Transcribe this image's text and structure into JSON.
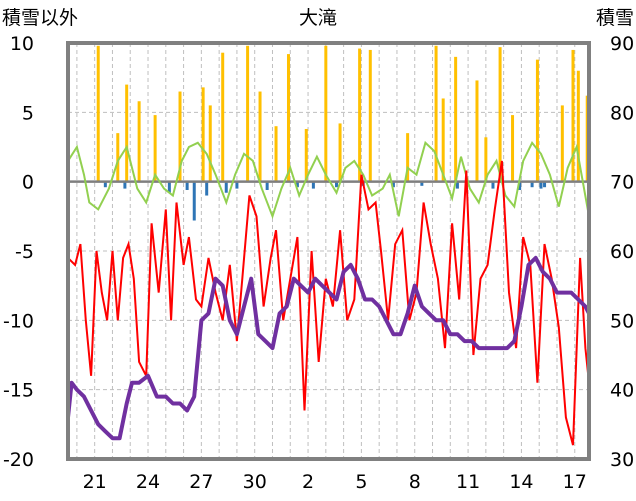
{
  "chart_data": {
    "type": "line",
    "title": "大滝",
    "y_left_label": "積雪以外",
    "y_right_label": "積雪",
    "y_left_range": [
      -20,
      10
    ],
    "y_left_ticks": [
      10,
      5,
      0,
      -5,
      -10,
      -15,
      -20
    ],
    "y_right_range": [
      30,
      90
    ],
    "y_right_ticks": [
      90,
      80,
      70,
      60,
      50,
      40,
      30
    ],
    "x_range": [
      19.5,
      48.8
    ],
    "x_ticks": [
      {
        "v": 21,
        "label": "21"
      },
      {
        "v": 24,
        "label": "24"
      },
      {
        "v": 27,
        "label": "27"
      },
      {
        "v": 30,
        "label": "30"
      },
      {
        "v": 33,
        "label": "2"
      },
      {
        "v": 36,
        "label": "5"
      },
      {
        "v": 39,
        "label": "8"
      },
      {
        "v": 42,
        "label": "11"
      },
      {
        "v": 45,
        "label": "14"
      },
      {
        "v": 48,
        "label": "17"
      }
    ],
    "grid": "dashed",
    "colors": {
      "precip": "#ffc000",
      "sunshine_neg": "#2e75b6",
      "green": "#92d050",
      "red": "#ff0000",
      "snow": "#7030a0",
      "zero_line": "#7f7f7f"
    },
    "series": [
      {
        "key": "precip_bars",
        "axis": "left",
        "x": [
          21.2,
          22.3,
          22.8,
          23.5,
          24.4,
          25.8,
          27.1,
          27.5,
          28.2,
          29.6,
          30.3,
          31.2,
          31.9,
          32.9,
          34.0,
          34.8,
          35.9,
          36.5,
          38.6,
          40.2,
          40.6,
          41.3,
          42.5,
          43.0,
          43.8,
          44.5,
          45.9,
          47.3,
          47.9,
          48.2,
          48.7
        ],
        "values": [
          9.8,
          3.5,
          7.0,
          5.8,
          4.8,
          6.5,
          6.8,
          5.5,
          9.3,
          9.8,
          6.5,
          4.0,
          9.2,
          3.8,
          9.8,
          4.2,
          9.6,
          9.5,
          3.5,
          9.8,
          6.0,
          9.0,
          7.3,
          3.2,
          9.7,
          4.8,
          8.8,
          5.5,
          9.5,
          8.0,
          6.2
        ]
      },
      {
        "key": "sunshine_bars",
        "axis": "left",
        "x": [
          21.6,
          22.7,
          25.2,
          26.2,
          26.6,
          27.3,
          28.4,
          29.0,
          30.7,
          32.4,
          33.3,
          34.6,
          36.1,
          37.8,
          39.4,
          41.4,
          43.4,
          44.9,
          45.6,
          46.1,
          46.3
        ],
        "values": [
          -0.4,
          -0.5,
          -0.8,
          -0.6,
          -2.8,
          -1.0,
          -0.8,
          -0.5,
          -0.6,
          -0.4,
          -0.5,
          -0.4,
          -0.3,
          -0.4,
          -0.3,
          -0.5,
          -0.5,
          -0.6,
          -0.4,
          -0.5,
          -0.4
        ]
      },
      {
        "key": "green_line",
        "axis": "left",
        "x": [
          19.5,
          20.0,
          20.4,
          20.7,
          21.2,
          21.8,
          22.3,
          22.8,
          23.4,
          23.9,
          24.4,
          24.9,
          25.4,
          25.9,
          26.3,
          26.8,
          27.3,
          27.8,
          28.4,
          28.9,
          29.4,
          29.9,
          30.4,
          31.0,
          31.5,
          32.0,
          32.5,
          33.0,
          33.5,
          34.0,
          34.6,
          35.1,
          35.6,
          36.1,
          36.6,
          37.2,
          37.6,
          38.1,
          38.6,
          39.1,
          39.6,
          40.1,
          40.6,
          41.1,
          41.6,
          42.1,
          42.6,
          43.1,
          43.6,
          44.1,
          44.6,
          45.1,
          45.6,
          46.1,
          46.6,
          47.1,
          47.6,
          48.1,
          48.8
        ],
        "values": [
          1.5,
          2.5,
          0.5,
          -1.5,
          -2.0,
          -0.5,
          1.5,
          2.5,
          -0.5,
          -1.5,
          0.5,
          -0.5,
          -1.0,
          1.5,
          2.5,
          2.8,
          2.0,
          0.5,
          -1.5,
          0.5,
          2.0,
          1.5,
          -0.5,
          -2.5,
          -0.5,
          1.0,
          -1.0,
          0.5,
          1.8,
          0.5,
          -0.8,
          1.0,
          1.5,
          0.5,
          -1.0,
          -0.5,
          0.5,
          -2.5,
          1.0,
          0.5,
          2.8,
          2.2,
          0.5,
          -1.2,
          1.8,
          -0.5,
          -1.5,
          0.5,
          1.5,
          -1.0,
          -1.8,
          1.5,
          2.8,
          2.0,
          0.5,
          -1.8,
          1.0,
          2.5,
          -2.5
        ]
      },
      {
        "key": "red_line",
        "axis": "left",
        "x": [
          19.5,
          19.9,
          20.2,
          20.5,
          20.8,
          21.1,
          21.4,
          21.7,
          22.0,
          22.3,
          22.6,
          22.9,
          23.2,
          23.5,
          23.9,
          24.2,
          24.6,
          25.0,
          25.3,
          25.6,
          26.0,
          26.3,
          26.7,
          27.0,
          27.4,
          27.8,
          28.2,
          28.6,
          29.0,
          29.3,
          29.7,
          30.1,
          30.5,
          30.9,
          31.2,
          31.6,
          32.0,
          32.4,
          32.8,
          33.2,
          33.6,
          34.0,
          34.4,
          34.8,
          35.2,
          35.6,
          36.0,
          36.4,
          36.8,
          37.1,
          37.5,
          37.9,
          38.3,
          38.7,
          39.1,
          39.5,
          39.9,
          40.3,
          40.7,
          41.1,
          41.5,
          41.9,
          42.3,
          42.7,
          43.1,
          43.5,
          43.9,
          44.3,
          44.7,
          45.1,
          45.5,
          45.9,
          46.3,
          46.7,
          47.1,
          47.5,
          47.9,
          48.3,
          48.6,
          48.8
        ],
        "values": [
          -5.5,
          -6.0,
          -4.5,
          -10.0,
          -14.0,
          -5.0,
          -8.0,
          -10.0,
          -5.0,
          -10.0,
          -5.5,
          -4.5,
          -7.0,
          -13.0,
          -14.0,
          -3.0,
          -8.0,
          -2.0,
          -10.0,
          -1.5,
          -6.0,
          -4.0,
          -8.5,
          -9.0,
          -5.5,
          -8.0,
          -10.0,
          -6.0,
          -11.5,
          -7.0,
          -1.0,
          -2.5,
          -9.0,
          -5.5,
          -3.5,
          -10.0,
          -7.0,
          -4.0,
          -16.5,
          -5.0,
          -13.0,
          -7.0,
          -9.0,
          -3.5,
          -10.0,
          -8.5,
          0.5,
          -2.0,
          -1.5,
          -5.0,
          -10.0,
          -4.5,
          -3.5,
          -10.0,
          -8.0,
          -1.5,
          -4.5,
          -7.0,
          -12.0,
          -3.0,
          -8.5,
          0.8,
          -12.5,
          -7.0,
          -6.0,
          -2.0,
          1.5,
          -8.0,
          -12.0,
          -4.0,
          -6.0,
          -14.5,
          -4.5,
          -7.0,
          -10.5,
          -17.0,
          -19.0,
          -5.5,
          -12.0,
          -14.5
        ]
      },
      {
        "key": "snow_depth",
        "axis": "right",
        "x": [
          19.5,
          19.7,
          20.0,
          20.4,
          20.8,
          21.2,
          21.6,
          22.0,
          22.4,
          22.8,
          23.1,
          23.5,
          24.0,
          24.5,
          25.0,
          25.4,
          25.8,
          26.2,
          26.6,
          27.0,
          27.4,
          27.8,
          28.2,
          28.6,
          29.0,
          29.4,
          29.8,
          30.2,
          30.6,
          31.0,
          31.4,
          31.8,
          32.2,
          32.6,
          33.0,
          33.4,
          33.8,
          34.2,
          34.6,
          35.0,
          35.4,
          35.8,
          36.2,
          36.6,
          37.0,
          37.4,
          37.8,
          38.2,
          38.6,
          39.0,
          39.4,
          39.8,
          40.2,
          40.6,
          41.0,
          41.4,
          41.8,
          42.2,
          42.6,
          43.0,
          43.4,
          43.8,
          44.2,
          44.6,
          45.0,
          45.4,
          45.8,
          46.2,
          46.6,
          47.0,
          47.4,
          47.8,
          48.2,
          48.6,
          48.8
        ],
        "values": [
          36,
          41,
          40,
          39,
          37,
          35,
          34,
          33,
          33,
          38,
          41,
          41,
          42,
          39,
          39,
          38,
          38,
          37,
          39,
          50,
          51,
          56,
          55,
          50,
          48,
          52,
          56,
          48,
          47,
          46,
          51,
          52,
          56,
          55,
          54,
          56,
          55,
          54,
          53,
          57,
          58,
          56,
          53,
          53,
          52,
          50,
          48,
          48,
          51,
          55,
          52,
          51,
          50,
          50,
          48,
          48,
          47,
          47,
          46,
          46,
          46,
          46,
          46,
          47,
          52,
          58,
          59,
          57,
          56,
          54,
          54,
          54,
          53,
          52,
          51
        ]
      }
    ]
  }
}
